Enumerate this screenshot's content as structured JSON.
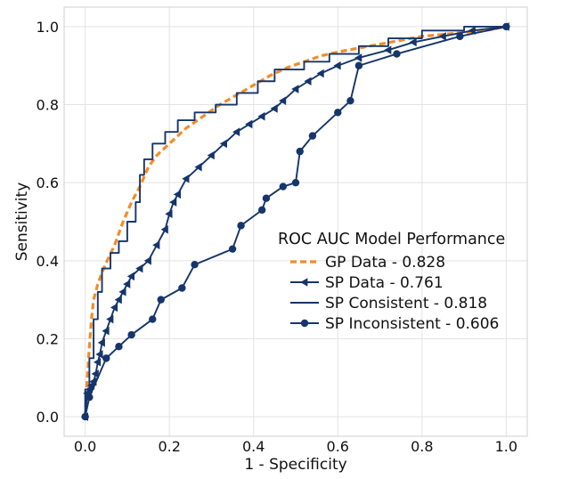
{
  "chart_data": {
    "type": "line",
    "title": "",
    "xlabel": "1 - Specificity",
    "ylabel": "Sensitivity",
    "xlim": [
      -0.05,
      1.05
    ],
    "ylim": [
      -0.05,
      1.05
    ],
    "grid": true,
    "x_ticks": [
      0.0,
      0.2,
      0.4,
      0.6,
      0.8,
      1.0
    ],
    "y_ticks": [
      0.0,
      0.2,
      0.4,
      0.6,
      0.8,
      1.0
    ],
    "x_tick_labels": [
      "0.0",
      "0.2",
      "0.4",
      "0.6",
      "0.8",
      "1.0"
    ],
    "y_tick_labels": [
      "0.0",
      "0.2",
      "0.4",
      "0.6",
      "0.8",
      "1.0"
    ],
    "legend": {
      "title": "ROC AUC Model Performance",
      "placement": "center-right"
    },
    "series": [
      {
        "name": "GP Data - 0.828",
        "color": "#f28c28",
        "style": "dashed",
        "marker": "none",
        "points": [
          [
            0,
            0
          ],
          [
            0.005,
            0.1
          ],
          [
            0.01,
            0.18
          ],
          [
            0.015,
            0.25
          ],
          [
            0.02,
            0.3
          ],
          [
            0.03,
            0.34
          ],
          [
            0.04,
            0.37
          ],
          [
            0.05,
            0.395
          ],
          [
            0.07,
            0.44
          ],
          [
            0.09,
            0.5
          ],
          [
            0.11,
            0.55
          ],
          [
            0.13,
            0.59
          ],
          [
            0.15,
            0.64
          ],
          [
            0.17,
            0.67
          ],
          [
            0.2,
            0.7
          ],
          [
            0.24,
            0.74
          ],
          [
            0.28,
            0.77
          ],
          [
            0.32,
            0.8
          ],
          [
            0.36,
            0.825
          ],
          [
            0.4,
            0.85
          ],
          [
            0.44,
            0.875
          ],
          [
            0.48,
            0.895
          ],
          [
            0.52,
            0.91
          ],
          [
            0.56,
            0.925
          ],
          [
            0.6,
            0.935
          ],
          [
            0.65,
            0.945
          ],
          [
            0.7,
            0.955
          ],
          [
            0.75,
            0.965
          ],
          [
            0.8,
            0.975
          ],
          [
            0.85,
            0.98
          ],
          [
            0.9,
            0.985
          ],
          [
            0.95,
            0.99
          ],
          [
            1.0,
            1.0
          ]
        ]
      },
      {
        "name": "SP Data - 0.761",
        "color": "#15356b",
        "style": "solid",
        "marker": "triangle-left",
        "points": [
          [
            0,
            0
          ],
          [
            0.005,
            0.06
          ],
          [
            0.01,
            0.07
          ],
          [
            0.015,
            0.08
          ],
          [
            0.02,
            0.09
          ],
          [
            0.025,
            0.11
          ],
          [
            0.03,
            0.14
          ],
          [
            0.035,
            0.16
          ],
          [
            0.04,
            0.19
          ],
          [
            0.05,
            0.22
          ],
          [
            0.06,
            0.25
          ],
          [
            0.07,
            0.28
          ],
          [
            0.08,
            0.3
          ],
          [
            0.09,
            0.32
          ],
          [
            0.1,
            0.34
          ],
          [
            0.11,
            0.36
          ],
          [
            0.13,
            0.38
          ],
          [
            0.15,
            0.4
          ],
          [
            0.17,
            0.44
          ],
          [
            0.19,
            0.48
          ],
          [
            0.2,
            0.52
          ],
          [
            0.21,
            0.55
          ],
          [
            0.22,
            0.57
          ],
          [
            0.24,
            0.61
          ],
          [
            0.27,
            0.64
          ],
          [
            0.3,
            0.67
          ],
          [
            0.33,
            0.7
          ],
          [
            0.36,
            0.73
          ],
          [
            0.39,
            0.75
          ],
          [
            0.42,
            0.77
          ],
          [
            0.45,
            0.79
          ],
          [
            0.47,
            0.81
          ],
          [
            0.5,
            0.84
          ],
          [
            0.53,
            0.86
          ],
          [
            0.56,
            0.88
          ],
          [
            0.6,
            0.9
          ],
          [
            0.65,
            0.92
          ],
          [
            0.72,
            0.94
          ],
          [
            0.78,
            0.96
          ],
          [
            0.85,
            0.975
          ],
          [
            0.92,
            0.99
          ],
          [
            1.0,
            1.0
          ]
        ]
      },
      {
        "name": "SP Consistent - 0.818",
        "color": "#15356b",
        "style": "solid",
        "marker": "none",
        "points": [
          [
            0,
            0
          ],
          [
            0,
            0.07
          ],
          [
            0.01,
            0.07
          ],
          [
            0.01,
            0.15
          ],
          [
            0.02,
            0.15
          ],
          [
            0.02,
            0.25
          ],
          [
            0.03,
            0.25
          ],
          [
            0.03,
            0.32
          ],
          [
            0.04,
            0.32
          ],
          [
            0.04,
            0.38
          ],
          [
            0.06,
            0.38
          ],
          [
            0.06,
            0.42
          ],
          [
            0.08,
            0.42
          ],
          [
            0.08,
            0.45
          ],
          [
            0.1,
            0.45
          ],
          [
            0.1,
            0.5
          ],
          [
            0.12,
            0.5
          ],
          [
            0.12,
            0.55
          ],
          [
            0.13,
            0.55
          ],
          [
            0.13,
            0.62
          ],
          [
            0.14,
            0.62
          ],
          [
            0.14,
            0.66
          ],
          [
            0.16,
            0.66
          ],
          [
            0.16,
            0.7
          ],
          [
            0.19,
            0.7
          ],
          [
            0.19,
            0.73
          ],
          [
            0.22,
            0.73
          ],
          [
            0.22,
            0.76
          ],
          [
            0.26,
            0.76
          ],
          [
            0.26,
            0.78
          ],
          [
            0.31,
            0.78
          ],
          [
            0.31,
            0.8
          ],
          [
            0.36,
            0.8
          ],
          [
            0.36,
            0.83
          ],
          [
            0.41,
            0.83
          ],
          [
            0.41,
            0.86
          ],
          [
            0.45,
            0.86
          ],
          [
            0.45,
            0.89
          ],
          [
            0.52,
            0.89
          ],
          [
            0.52,
            0.91
          ],
          [
            0.58,
            0.91
          ],
          [
            0.58,
            0.93
          ],
          [
            0.65,
            0.93
          ],
          [
            0.65,
            0.95
          ],
          [
            0.72,
            0.95
          ],
          [
            0.72,
            0.97
          ],
          [
            0.8,
            0.97
          ],
          [
            0.8,
            0.99
          ],
          [
            0.9,
            0.99
          ],
          [
            0.9,
            1.0
          ],
          [
            1.0,
            1.0
          ]
        ]
      },
      {
        "name": "SP Inconsistent - 0.606",
        "color": "#15356b",
        "style": "solid",
        "marker": "circle",
        "points": [
          [
            0,
            0
          ],
          [
            0.01,
            0.05
          ],
          [
            0.05,
            0.15
          ],
          [
            0.08,
            0.18
          ],
          [
            0.11,
            0.21
          ],
          [
            0.16,
            0.25
          ],
          [
            0.18,
            0.3
          ],
          [
            0.23,
            0.33
          ],
          [
            0.26,
            0.39
          ],
          [
            0.35,
            0.43
          ],
          [
            0.37,
            0.49
          ],
          [
            0.42,
            0.53
          ],
          [
            0.43,
            0.56
          ],
          [
            0.47,
            0.59
          ],
          [
            0.5,
            0.6
          ],
          [
            0.51,
            0.68
          ],
          [
            0.54,
            0.72
          ],
          [
            0.6,
            0.78
          ],
          [
            0.63,
            0.81
          ],
          [
            0.65,
            0.9
          ],
          [
            0.74,
            0.93
          ],
          [
            0.89,
            0.975
          ],
          [
            1.0,
            1.0
          ]
        ]
      }
    ]
  }
}
